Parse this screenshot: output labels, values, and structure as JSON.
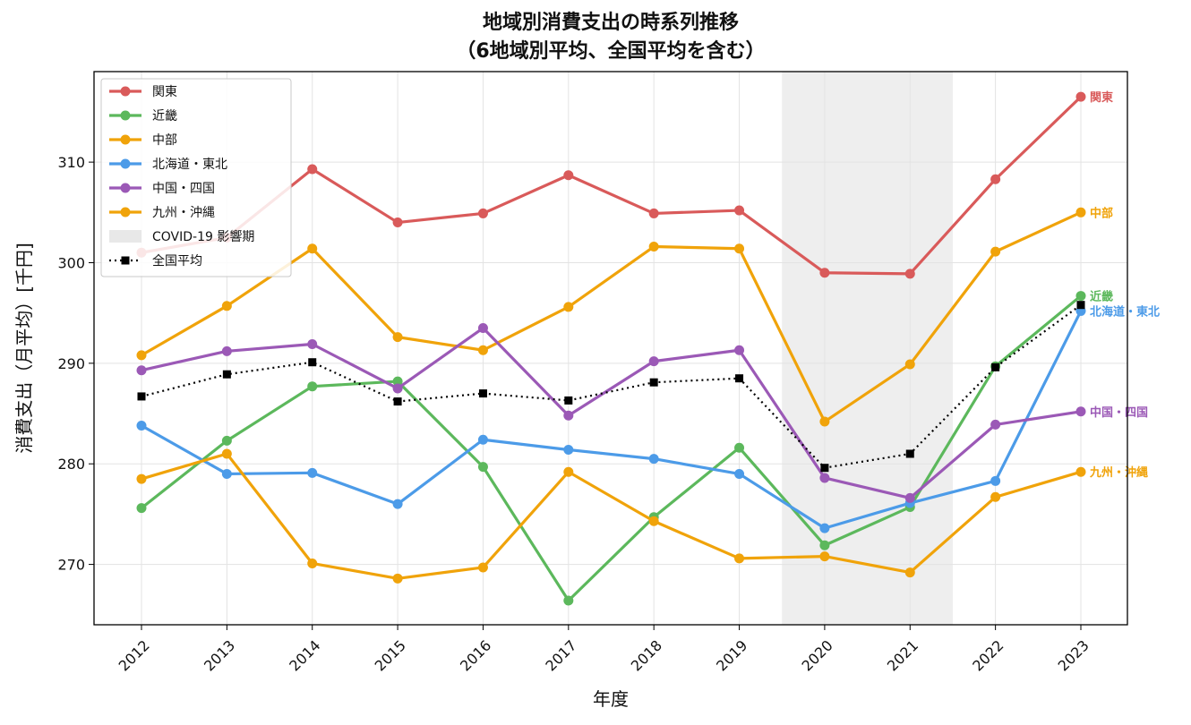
{
  "chart_data": {
    "type": "line",
    "title": "地域別消費支出の時系列推移",
    "subtitle": "（6地域別平均、全国平均を含む）",
    "xlabel": "年度",
    "ylabel": "消費支出（月平均）[千円]",
    "x": [
      "2012",
      "2013",
      "2014",
      "2015",
      "2016",
      "2017",
      "2018",
      "2019",
      "2020",
      "2021",
      "2022",
      "2023"
    ],
    "ylim": [
      264,
      319
    ],
    "yticks": [
      270,
      280,
      290,
      300,
      310
    ],
    "grid": true,
    "legend_position": "top-left",
    "shaded_region": {
      "label": "COVID-19 影響期",
      "x_from": "2020",
      "x_to": "2021",
      "color": "#d9d9d9"
    },
    "series": [
      {
        "name": "関東",
        "color": "#d95a5a",
        "end_label": "関東",
        "style": "solid",
        "values": [
          301.0,
          302.5,
          309.3,
          304.0,
          304.9,
          308.7,
          304.9,
          305.2,
          299.0,
          298.9,
          308.3,
          316.5
        ]
      },
      {
        "name": "近畿",
        "color": "#5cb85c",
        "end_label": "近畿",
        "style": "solid",
        "values": [
          275.6,
          282.3,
          287.7,
          288.2,
          279.7,
          266.4,
          274.7,
          281.6,
          271.9,
          275.7,
          289.7,
          296.7
        ]
      },
      {
        "name": "中部",
        "color": "#f0a30a",
        "end_label": "中部",
        "style": "solid",
        "values": [
          290.8,
          295.7,
          301.4,
          292.6,
          291.3,
          295.6,
          301.6,
          301.4,
          284.2,
          289.9,
          301.1,
          305.0
        ]
      },
      {
        "name": "北海道・東北",
        "color": "#4c9be8",
        "end_label": "北海道・東北",
        "style": "solid",
        "values": [
          283.8,
          279.0,
          279.1,
          276.0,
          282.4,
          281.4,
          280.5,
          279.0,
          273.6,
          276.1,
          278.3,
          295.2
        ]
      },
      {
        "name": "中国・四国",
        "color": "#9b59b6",
        "end_label": "中国・四国",
        "style": "solid",
        "values": [
          289.3,
          291.2,
          291.9,
          287.5,
          293.5,
          284.8,
          290.2,
          291.3,
          278.6,
          276.6,
          283.9,
          285.2
        ]
      },
      {
        "name": "九州・沖縄",
        "color": "#f0a30a",
        "end_label": "九州・沖縄",
        "style": "solid",
        "values": [
          278.5,
          281.0,
          270.1,
          268.6,
          269.7,
          279.2,
          274.3,
          270.6,
          270.8,
          269.2,
          276.7,
          279.2
        ]
      },
      {
        "name": "全国平均",
        "color": "#000000",
        "end_label": "",
        "style": "dotted",
        "values": [
          286.7,
          288.9,
          290.1,
          286.2,
          287.0,
          286.3,
          288.1,
          288.5,
          279.6,
          281.0,
          289.6,
          295.8
        ]
      }
    ]
  }
}
